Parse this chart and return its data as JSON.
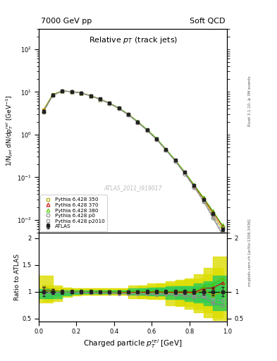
{
  "title_left": "7000 GeV pp",
  "title_right": "Soft QCD",
  "main_title": "Relative $p_{T}$ (track jets)",
  "watermark": "ATLAS_2011_I919017",
  "xlabel": "Charged particle $p_{T}^{rel}$ [GeV]",
  "ylabel_main": "1/N$_{jet}$ dN/dp$_{T}^{rel}$ [GeV$^{-1}$]",
  "ylabel_ratio": "Ratio to ATLAS",
  "right_label_top": "Rivet 3.1.10, ≥ 3M events",
  "right_label_bot": "mcplots.cern.ch [arXiv:1306.3436]",
  "x": [
    0.025,
    0.075,
    0.125,
    0.175,
    0.225,
    0.275,
    0.325,
    0.375,
    0.425,
    0.475,
    0.525,
    0.575,
    0.625,
    0.675,
    0.725,
    0.775,
    0.825,
    0.875,
    0.925,
    0.975
  ],
  "atlas_y": [
    3.5,
    8.5,
    10.5,
    10.2,
    9.5,
    8.2,
    6.8,
    5.5,
    4.2,
    3.0,
    2.0,
    1.3,
    0.8,
    0.45,
    0.25,
    0.13,
    0.065,
    0.03,
    0.014,
    0.006
  ],
  "atlas_yerr": [
    0.3,
    0.4,
    0.4,
    0.35,
    0.3,
    0.25,
    0.2,
    0.15,
    0.12,
    0.09,
    0.06,
    0.04,
    0.025,
    0.015,
    0.009,
    0.005,
    0.003,
    0.0015,
    0.001,
    0.0005
  ],
  "py350_y": [
    3.8,
    8.8,
    10.5,
    10.2,
    9.4,
    8.1,
    6.7,
    5.4,
    4.1,
    2.95,
    1.98,
    1.28,
    0.79,
    0.445,
    0.245,
    0.127,
    0.063,
    0.031,
    0.013,
    0.006
  ],
  "py370_y": [
    3.6,
    8.6,
    10.5,
    10.2,
    9.45,
    8.15,
    6.75,
    5.45,
    4.15,
    2.98,
    1.99,
    1.29,
    0.8,
    0.448,
    0.248,
    0.13,
    0.064,
    0.032,
    0.015,
    0.007
  ],
  "py380_y": [
    3.55,
    8.55,
    10.5,
    10.2,
    9.48,
    8.18,
    6.78,
    5.48,
    4.18,
    3.01,
    2.01,
    1.31,
    0.81,
    0.452,
    0.252,
    0.132,
    0.066,
    0.033,
    0.016,
    0.0075
  ],
  "pyp0_y": [
    3.4,
    8.3,
    10.4,
    10.1,
    9.35,
    8.05,
    6.65,
    5.35,
    4.05,
    2.88,
    1.92,
    1.24,
    0.76,
    0.43,
    0.235,
    0.12,
    0.058,
    0.027,
    0.011,
    0.0045
  ],
  "pyp2010_y": [
    3.45,
    8.4,
    10.45,
    10.15,
    9.4,
    8.1,
    6.7,
    5.4,
    4.1,
    2.92,
    1.95,
    1.26,
    0.775,
    0.435,
    0.24,
    0.125,
    0.06,
    0.028,
    0.012,
    0.005
  ],
  "band_green_lo": [
    0.88,
    0.88,
    0.93,
    0.96,
    0.97,
    0.97,
    0.97,
    0.97,
    0.97,
    0.97,
    0.94,
    0.94,
    0.93,
    0.93,
    0.87,
    0.87,
    0.83,
    0.8,
    0.75,
    0.65
  ],
  "band_green_hi": [
    1.05,
    1.0,
    1.02,
    1.03,
    1.03,
    1.03,
    1.03,
    1.03,
    1.03,
    1.03,
    1.06,
    1.06,
    1.08,
    1.08,
    1.1,
    1.1,
    1.1,
    1.15,
    1.2,
    1.3
  ],
  "band_yellow_lo": [
    0.8,
    0.82,
    0.9,
    0.93,
    0.94,
    0.94,
    0.94,
    0.94,
    0.94,
    0.94,
    0.88,
    0.88,
    0.86,
    0.86,
    0.75,
    0.73,
    0.68,
    0.62,
    0.52,
    0.47
  ],
  "band_yellow_hi": [
    1.3,
    1.12,
    1.08,
    1.06,
    1.06,
    1.06,
    1.06,
    1.06,
    1.06,
    1.06,
    1.12,
    1.12,
    1.15,
    1.15,
    1.2,
    1.22,
    1.25,
    1.32,
    1.45,
    1.65
  ],
  "color_atlas": "#222222",
  "color_py350": "#aaaa00",
  "color_py370": "#cc0000",
  "color_py380": "#44cc00",
  "color_pyp0": "#888888",
  "color_pyp2010": "#999999",
  "color_green_band": "#33cc55",
  "color_yellow_band": "#dddd00",
  "ylim_main": [
    0.005,
    300
  ],
  "ylim_ratio": [
    0.45,
    2.1
  ],
  "xlim": [
    0.0,
    1.0
  ]
}
